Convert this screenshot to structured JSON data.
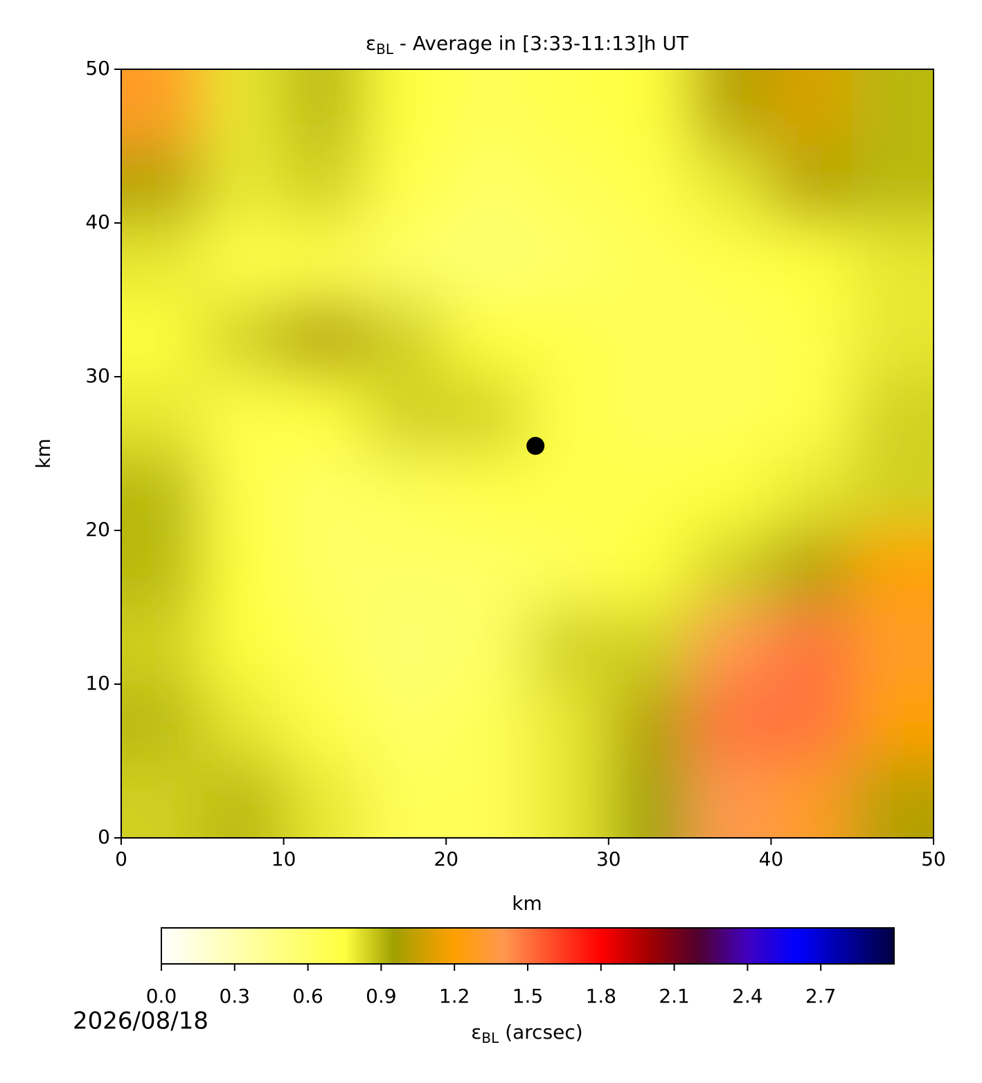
{
  "chart_data": {
    "type": "heatmap",
    "title": [
      "ε",
      "BL",
      " - Average in [3:33-11:13]h UT"
    ],
    "xlabel": "km",
    "ylabel": "km",
    "xlim": [
      0,
      50
    ],
    "ylim": [
      0,
      50
    ],
    "xticks": [
      0,
      10,
      20,
      30,
      40,
      50
    ],
    "yticks": [
      0,
      10,
      20,
      30,
      40,
      50
    ],
    "x": [
      2.5,
      7.5,
      12.5,
      17.5,
      22.5,
      27.5,
      32.5,
      37.5,
      42.5,
      47.5
    ],
    "y": [
      47.5,
      42.5,
      37.5,
      32.5,
      27.5,
      22.5,
      17.5,
      12.5,
      7.5,
      2.5
    ],
    "z": [
      [
        1.3,
        0.8,
        0.9,
        0.75,
        0.65,
        0.7,
        0.75,
        1.0,
        1.1,
        0.9
      ],
      [
        1.0,
        0.8,
        0.85,
        0.7,
        0.6,
        0.65,
        0.7,
        0.8,
        1.0,
        0.9
      ],
      [
        0.8,
        0.7,
        0.7,
        0.6,
        0.55,
        0.6,
        0.65,
        0.7,
        0.75,
        0.8
      ],
      [
        0.75,
        0.85,
        1.0,
        0.85,
        0.75,
        0.7,
        0.65,
        0.65,
        0.7,
        0.8
      ],
      [
        0.8,
        0.7,
        0.75,
        0.85,
        0.85,
        0.7,
        0.65,
        0.65,
        0.7,
        0.85
      ],
      [
        0.9,
        0.7,
        0.6,
        0.65,
        0.7,
        0.7,
        0.7,
        0.75,
        0.8,
        0.85
      ],
      [
        0.9,
        0.75,
        0.6,
        0.6,
        0.6,
        0.65,
        0.75,
        0.85,
        1.0,
        1.2
      ],
      [
        0.85,
        0.75,
        0.65,
        0.55,
        0.6,
        0.85,
        0.85,
        1.4,
        1.5,
        1.3
      ],
      [
        0.9,
        0.8,
        0.7,
        0.6,
        0.65,
        0.8,
        1.0,
        1.5,
        1.5,
        1.2
      ],
      [
        0.85,
        0.9,
        0.8,
        0.65,
        0.65,
        0.8,
        0.95,
        1.4,
        1.3,
        1.0
      ]
    ],
    "marker": {
      "x": 25.5,
      "y": 25.5,
      "color": "#000000"
    },
    "clim": [
      0,
      3
    ],
    "colormap": [
      [
        0,
        "#ffffff"
      ],
      [
        0.3,
        "#ffffb0"
      ],
      [
        0.75,
        "#ffff40"
      ],
      [
        0.95,
        "#a0a000"
      ],
      [
        1.2,
        "#ffa000"
      ],
      [
        1.4,
        "#ff9850"
      ],
      [
        1.8,
        "#ff0000"
      ],
      [
        2.0,
        "#a00000"
      ],
      [
        2.2,
        "#500030"
      ],
      [
        2.4,
        "#4000c0"
      ],
      [
        2.6,
        "#0000ff"
      ],
      [
        3.0,
        "#000040"
      ]
    ],
    "colorbar_ticks": [
      {
        "value": 0,
        "label": "0.0"
      },
      0.3,
      0.6,
      0.9,
      1.2,
      1.5,
      1.8,
      2.1,
      2.4,
      2.7
    ],
    "colorbar_label": [
      "ε",
      "BL",
      " (arcsec)"
    ],
    "date": "2026/08/18"
  }
}
